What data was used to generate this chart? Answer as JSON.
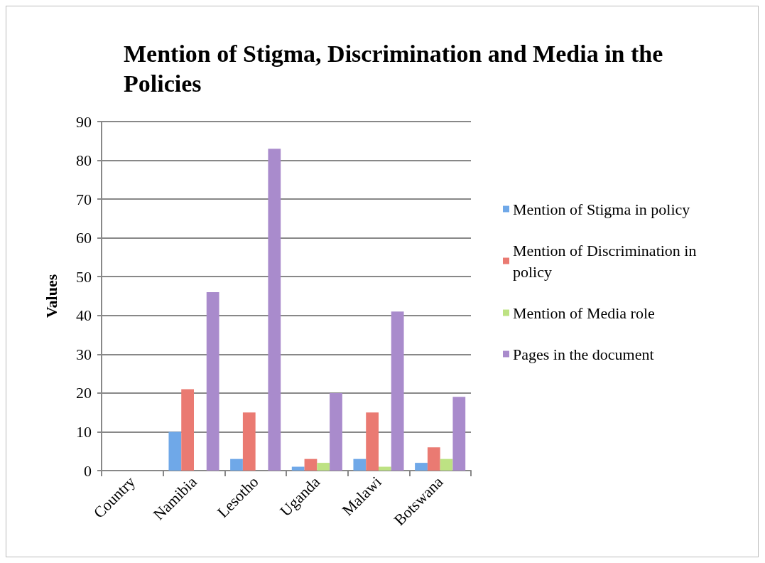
{
  "chart_data": {
    "type": "bar",
    "title": "Mention of Stigma, Discrimination and Media in the Policies",
    "ylabel": "Values",
    "categories": [
      "Country",
      "Namibia",
      "Lesotho",
      "Uganda",
      "Malawi",
      "Botswana"
    ],
    "series": [
      {
        "name": "Mention of Stigma in policy",
        "color": "#6fa8e8",
        "values": [
          null,
          10,
          3,
          1,
          3,
          2
        ]
      },
      {
        "name": "Mention of Discrimination in policy",
        "color": "#ea7a72",
        "values": [
          null,
          21,
          15,
          3,
          15,
          6
        ]
      },
      {
        "name": "Mention of Media role",
        "color": "#bde283",
        "values": [
          null,
          null,
          null,
          2,
          1,
          3
        ]
      },
      {
        "name": "Pages in the document",
        "color": "#a98bcc",
        "values": [
          null,
          46,
          83,
          20,
          41,
          19
        ]
      }
    ],
    "ylim": [
      0,
      90
    ],
    "yticks": [
      0,
      10,
      20,
      30,
      40,
      50,
      60,
      70,
      80,
      90
    ],
    "grid": "y",
    "legend": "right"
  }
}
